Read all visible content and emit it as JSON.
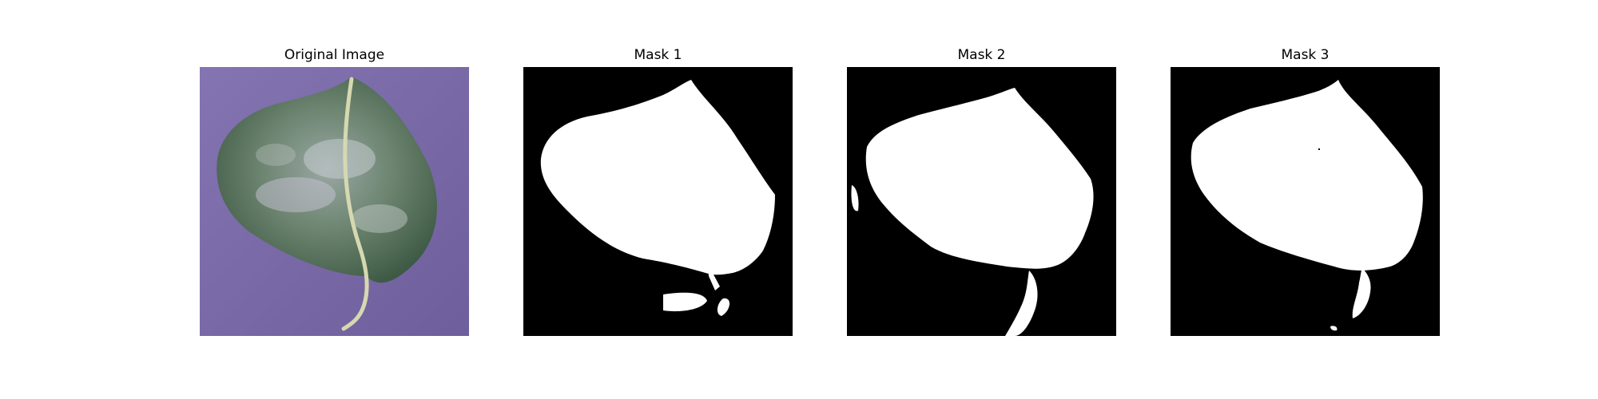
{
  "figure": {
    "panels": [
      {
        "title": "Original Image",
        "content": "photo of a leaf with white powdery patches on a purple background"
      },
      {
        "title": "Mask 1",
        "content": "binary segmentation mask"
      },
      {
        "title": "Mask 2",
        "content": "binary segmentation mask"
      },
      {
        "title": "Mask 3",
        "content": "binary segmentation mask"
      }
    ]
  },
  "colors": {
    "background_purple": "#7a6aa6",
    "leaf_dark": "#4d6a52",
    "leaf_light": "#b8c4c0",
    "mask_bg": "#000000",
    "mask_fg": "#ffffff"
  }
}
